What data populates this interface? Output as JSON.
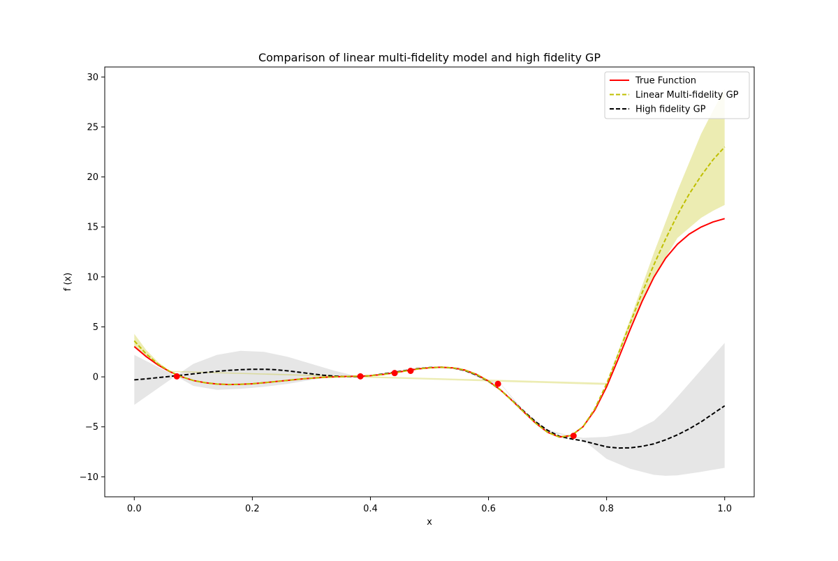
{
  "chart_data": {
    "type": "line",
    "title": "Comparison of linear multi-fidelity model and high fidelity GP",
    "xlabel": "x",
    "ylabel": "f (x)",
    "xlim": [
      -0.05,
      1.05
    ],
    "ylim": [
      -12,
      31
    ],
    "xticks": [
      0.0,
      0.2,
      0.4,
      0.6,
      0.8,
      1.0
    ],
    "xtick_labels": [
      "0.0",
      "0.2",
      "0.4",
      "0.6",
      "0.8",
      "1.0"
    ],
    "yticks": [
      -10,
      -5,
      0,
      5,
      10,
      15,
      20,
      25,
      30
    ],
    "ytick_labels": [
      "−10",
      "−5",
      "0",
      "5",
      "10",
      "15",
      "20",
      "25",
      "30"
    ],
    "grid": false,
    "legend_position": "top-right",
    "series": [
      {
        "name": "True Function",
        "color": "#ff0000",
        "style": "solid",
        "x": [
          0.0,
          0.02,
          0.04,
          0.06,
          0.08,
          0.1,
          0.12,
          0.14,
          0.16,
          0.18,
          0.2,
          0.22,
          0.24,
          0.26,
          0.28,
          0.3,
          0.32,
          0.34,
          0.36,
          0.38,
          0.4,
          0.42,
          0.44,
          0.46,
          0.48,
          0.5,
          0.52,
          0.54,
          0.56,
          0.58,
          0.6,
          0.62,
          0.64,
          0.66,
          0.68,
          0.7,
          0.72,
          0.74,
          0.76,
          0.78,
          0.8,
          0.82,
          0.84,
          0.86,
          0.88,
          0.9,
          0.92,
          0.94,
          0.96,
          0.98,
          1.0
        ],
        "y": [
          3.03,
          2.04,
          1.2,
          0.52,
          0.01,
          -0.36,
          -0.59,
          -0.72,
          -0.77,
          -0.75,
          -0.69,
          -0.59,
          -0.47,
          -0.35,
          -0.23,
          -0.13,
          -0.05,
          0.0,
          0.04,
          0.06,
          0.12,
          0.24,
          0.4,
          0.6,
          0.79,
          0.91,
          0.96,
          0.9,
          0.68,
          0.24,
          -0.42,
          -1.3,
          -2.38,
          -3.53,
          -4.64,
          -5.54,
          -6.02,
          -5.88,
          -5.0,
          -3.34,
          -1.0,
          1.82,
          4.76,
          7.54,
          9.97,
          11.87,
          13.27,
          14.28,
          14.99,
          15.49,
          15.83
        ]
      },
      {
        "name": "Linear Multi-fidelity GP",
        "color": "#bfbf00",
        "style": "dashed",
        "x": [
          0.0,
          0.02,
          0.04,
          0.06,
          0.08,
          0.1,
          0.12,
          0.14,
          0.16,
          0.18,
          0.2,
          0.22,
          0.24,
          0.26,
          0.28,
          0.3,
          0.32,
          0.34,
          0.36,
          0.38,
          0.4,
          0.42,
          0.44,
          0.46,
          0.48,
          0.5,
          0.52,
          0.54,
          0.56,
          0.58,
          0.6,
          0.62,
          0.64,
          0.66,
          0.68,
          0.7,
          0.72,
          0.74,
          0.76,
          0.78,
          0.8,
          0.82,
          0.84,
          0.86,
          0.88,
          0.9,
          0.92,
          0.94,
          0.96,
          0.98,
          1.0
        ],
        "y": [
          3.6,
          2.3,
          1.3,
          0.55,
          0.01,
          -0.36,
          -0.59,
          -0.72,
          -0.77,
          -0.75,
          -0.69,
          -0.59,
          -0.47,
          -0.35,
          -0.23,
          -0.13,
          -0.05,
          0.0,
          0.04,
          0.06,
          0.12,
          0.24,
          0.4,
          0.6,
          0.79,
          0.91,
          0.96,
          0.9,
          0.68,
          0.24,
          -0.42,
          -1.3,
          -2.38,
          -3.53,
          -4.64,
          -5.54,
          -6.02,
          -5.88,
          -5.0,
          -3.2,
          -0.7,
          2.3,
          5.4,
          8.4,
          11.2,
          13.8,
          16.2,
          18.3,
          20.1,
          21.7,
          23.0
        ]
      },
      {
        "name": "High fidelity GP",
        "color": "#000000",
        "style": "dashed",
        "x": [
          0.0,
          0.02,
          0.04,
          0.06,
          0.08,
          0.1,
          0.12,
          0.14,
          0.16,
          0.18,
          0.2,
          0.22,
          0.24,
          0.26,
          0.28,
          0.3,
          0.32,
          0.34,
          0.36,
          0.38,
          0.4,
          0.42,
          0.44,
          0.46,
          0.48,
          0.5,
          0.52,
          0.54,
          0.56,
          0.58,
          0.6,
          0.62,
          0.64,
          0.66,
          0.68,
          0.7,
          0.72,
          0.74,
          0.76,
          0.78,
          0.8,
          0.82,
          0.84,
          0.86,
          0.88,
          0.9,
          0.92,
          0.94,
          0.96,
          0.98,
          1.0
        ],
        "y": [
          -0.3,
          -0.2,
          -0.08,
          0.04,
          0.17,
          0.3,
          0.43,
          0.55,
          0.65,
          0.72,
          0.76,
          0.76,
          0.71,
          0.6,
          0.46,
          0.31,
          0.17,
          0.07,
          0.02,
          0.03,
          0.12,
          0.28,
          0.45,
          0.64,
          0.82,
          0.93,
          0.96,
          0.88,
          0.63,
          0.18,
          -0.45,
          -1.3,
          -2.35,
          -3.45,
          -4.5,
          -5.35,
          -5.95,
          -6.2,
          -6.4,
          -6.7,
          -7.0,
          -7.12,
          -7.1,
          -6.95,
          -6.7,
          -6.3,
          -5.8,
          -5.2,
          -4.5,
          -3.7,
          -2.9
        ]
      }
    ],
    "bands": [
      {
        "series": "Linear Multi-fidelity GP",
        "color": "#bfbf00",
        "opacity": 0.3,
        "x": [
          0.0,
          0.02,
          0.04,
          0.06,
          0.8,
          0.84,
          0.88,
          0.92,
          0.96,
          0.98,
          1.0
        ],
        "lower": [
          3.0,
          2.0,
          1.15,
          0.5,
          -0.8,
          5.0,
          10.0,
          13.9,
          15.9,
          16.6,
          17.2
        ],
        "upper": [
          4.3,
          2.7,
          1.5,
          0.6,
          -0.6,
          5.8,
          12.4,
          18.6,
          24.3,
          26.6,
          28.8
        ]
      },
      {
        "series": "High fidelity GP",
        "color": "#808080",
        "opacity": 0.2,
        "x": [
          0.0,
          0.07,
          0.1,
          0.14,
          0.18,
          0.22,
          0.26,
          0.3,
          0.34,
          0.38,
          0.4,
          0.44,
          0.47,
          0.5,
          0.55,
          0.6,
          0.62,
          0.66,
          0.7,
          0.74,
          0.76,
          0.8,
          0.84,
          0.88,
          0.9,
          0.92,
          0.96,
          1.0
        ],
        "lower": [
          -2.8,
          0.1,
          -0.9,
          -1.3,
          -1.2,
          -1.0,
          -0.7,
          -0.3,
          0.0,
          0.03,
          0.12,
          0.45,
          0.62,
          0.9,
          0.8,
          -0.55,
          -0.7,
          -3.6,
          -5.6,
          -5.9,
          -6.3,
          -8.2,
          -9.2,
          -9.8,
          -9.9,
          -9.85,
          -9.5,
          -9.1
        ],
        "upper": [
          2.2,
          0.1,
          1.3,
          2.2,
          2.6,
          2.5,
          2.0,
          1.3,
          0.6,
          0.03,
          0.12,
          0.45,
          0.62,
          1.0,
          0.95,
          -0.35,
          -0.65,
          -3.4,
          -5.3,
          -5.9,
          -6.1,
          -6.0,
          -5.6,
          -4.4,
          -3.3,
          -2.0,
          0.7,
          3.4
        ]
      }
    ],
    "observations": {
      "color": "#ff0000",
      "x": [
        0.072,
        0.383,
        0.441,
        0.468,
        0.616,
        0.744
      ],
      "y": [
        0.05,
        0.05,
        0.38,
        0.6,
        -0.7,
        -5.9
      ]
    }
  }
}
